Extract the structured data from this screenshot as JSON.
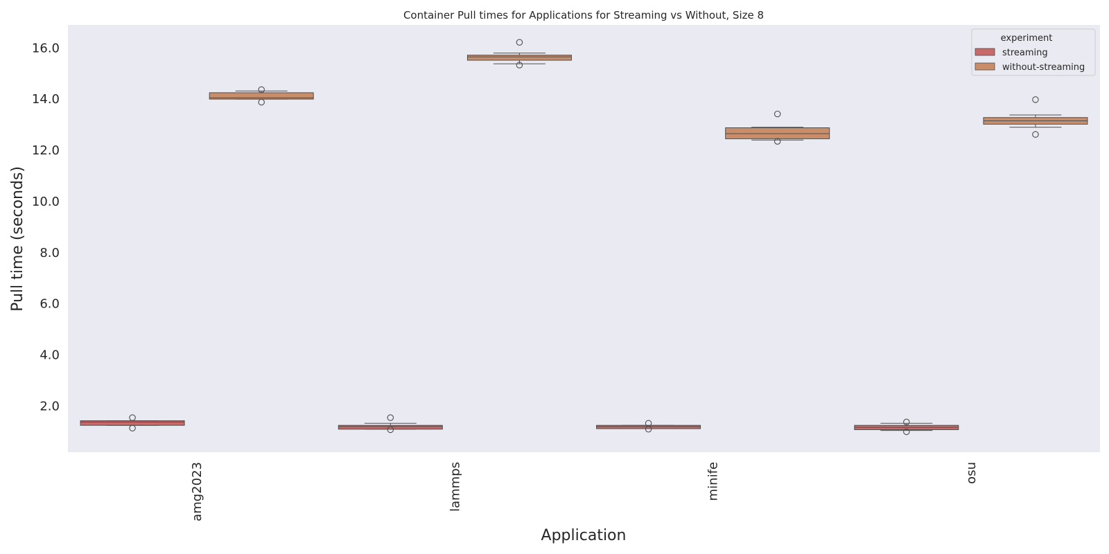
{
  "chart_data": {
    "type": "box",
    "title": "Container Pull times for Applications for Streaming vs Without, Size 8",
    "xlabel": "Application",
    "ylabel": "Pull time (seconds)",
    "ylim": [
      0.2,
      16.9
    ],
    "yticks": [
      2.0,
      4.0,
      6.0,
      8.0,
      10.0,
      12.0,
      14.0,
      16.0
    ],
    "ytick_labels": [
      "2.0",
      "4.0",
      "6.0",
      "8.0",
      "10.0",
      "12.0",
      "14.0",
      "16.0"
    ],
    "categories": [
      "amg2023",
      "lammps",
      "minife",
      "osu"
    ],
    "grid": false,
    "legend": {
      "title": "experiment",
      "placement": "top-right",
      "entries": [
        "streaming",
        "without-streaming"
      ]
    },
    "colors": {
      "streaming": "#c96a6a",
      "without-streaming": "#c98d6a",
      "plot_background": "#eaeaf2",
      "edge": "#4d4d4d"
    },
    "series": [
      {
        "name": "streaming",
        "boxes": [
          {
            "category": "amg2023",
            "whisker_low": 1.25,
            "q1": 1.25,
            "median": 1.38,
            "q3": 1.43,
            "whisker_high": 1.43,
            "outliers": [
              1.55,
              1.14
            ]
          },
          {
            "category": "lammps",
            "whisker_low": 1.1,
            "q1": 1.1,
            "median": 1.2,
            "q3": 1.25,
            "whisker_high": 1.33,
            "outliers": [
              1.55,
              1.08
            ]
          },
          {
            "category": "minife",
            "whisker_low": 1.12,
            "q1": 1.12,
            "median": 1.2,
            "q3": 1.25,
            "whisker_high": 1.25,
            "outliers": [
              1.33,
              1.1
            ]
          },
          {
            "category": "osu",
            "whisker_low": 1.05,
            "q1": 1.08,
            "median": 1.17,
            "q3": 1.25,
            "whisker_high": 1.33,
            "outliers": [
              1.38,
              1.0
            ]
          }
        ]
      },
      {
        "name": "without-streaming",
        "boxes": [
          {
            "category": "amg2023",
            "whisker_low": 14.0,
            "q1": 14.0,
            "median": 14.05,
            "q3": 14.25,
            "whisker_high": 14.32,
            "outliers": [
              14.37,
              13.88
            ]
          },
          {
            "category": "lammps",
            "whisker_low": 15.38,
            "q1": 15.52,
            "median": 15.65,
            "q3": 15.72,
            "whisker_high": 15.8,
            "outliers": [
              16.22,
              15.33
            ]
          },
          {
            "category": "minife",
            "whisker_low": 12.4,
            "q1": 12.45,
            "median": 12.65,
            "q3": 12.88,
            "whisker_high": 12.9,
            "outliers": [
              13.42,
              12.35
            ]
          },
          {
            "category": "osu",
            "whisker_low": 12.9,
            "q1": 13.02,
            "median": 13.15,
            "q3": 13.28,
            "whisker_high": 13.38,
            "outliers": [
              13.98,
              12.62
            ]
          }
        ]
      }
    ]
  }
}
